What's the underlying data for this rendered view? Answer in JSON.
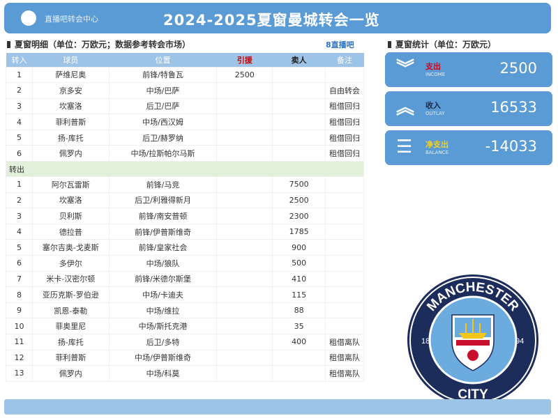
{
  "header": {
    "brand": "直播吧转会中心",
    "title": "2024-2025夏窗曼城转会一览"
  },
  "detail": {
    "title": "夏窗明细（单位：万欧元；数据参考转会市场）",
    "badge": "8直播吧"
  },
  "table": {
    "headers": [
      "转入",
      "球员",
      "位置",
      "引援",
      "卖人",
      "备注"
    ],
    "incoming": [
      [
        "1",
        "萨维尼奥",
        "前锋/特鲁瓦",
        "2500",
        "",
        ""
      ],
      [
        "2",
        "京多安",
        "中场/巴萨",
        "",
        "",
        "自由转会"
      ],
      [
        "3",
        "坎塞洛",
        "后卫/巴萨",
        "",
        "",
        "租借回归"
      ],
      [
        "4",
        "菲利普斯",
        "中场/西汉姆",
        "",
        "",
        "租借回归"
      ],
      [
        "5",
        "扬-库托",
        "后卫/赫罗纳",
        "",
        "",
        "租借回归"
      ],
      [
        "6",
        "佩罗内",
        "中场/拉斯帕尔马斯",
        "",
        "",
        "租借回归"
      ]
    ],
    "out_label": "转出",
    "outgoing": [
      [
        "1",
        "阿尔瓦雷斯",
        "前锋/马竞",
        "",
        "7500",
        ""
      ],
      [
        "2",
        "坎塞洛",
        "后卫/利雅得新月",
        "",
        "2500",
        ""
      ],
      [
        "3",
        "贝利斯",
        "前锋/南安普顿",
        "",
        "2300",
        ""
      ],
      [
        "4",
        "德拉普",
        "前锋/伊普斯维奇",
        "",
        "1785",
        ""
      ],
      [
        "5",
        "塞尔吉奥-戈麦斯",
        "前锋/皇家社会",
        "",
        "900",
        ""
      ],
      [
        "6",
        "多伊尔",
        "中场/狼队",
        "",
        "500",
        ""
      ],
      [
        "7",
        "米卡-汉密尔顿",
        "前锋/米德尔斯堡",
        "",
        "410",
        ""
      ],
      [
        "8",
        "亚历克斯-罗伯逊",
        "中场/卡迪夫",
        "",
        "115",
        ""
      ],
      [
        "9",
        "凯恩-泰勒",
        "中场/维拉",
        "",
        "88",
        ""
      ],
      [
        "10",
        "菲奥里尼",
        "中场/斯托克港",
        "",
        "35",
        ""
      ],
      [
        "11",
        "扬-库托",
        "后卫/多特",
        "",
        "400",
        "租借离队"
      ],
      [
        "12",
        "菲利普斯",
        "中场/伊普斯维奇",
        "",
        "",
        "租借离队"
      ],
      [
        "13",
        "佩罗内",
        "中场/科莫",
        "",
        "",
        "租借离队"
      ]
    ]
  },
  "stats": {
    "title": "夏窗统计（单位：万欧元）",
    "cards": [
      {
        "icon": "double-chevron-down-icon",
        "label": "支出",
        "sub": "INCOME",
        "value": "2500",
        "label_color": "#d0021b"
      },
      {
        "icon": "double-chevron-up-icon",
        "label": "收入",
        "sub": "OUTLAY",
        "value": "16533",
        "label_color": "#1a2a4a"
      },
      {
        "icon": "coins-icon",
        "label": "净支出",
        "sub": "BALANCE",
        "value": "-14033",
        "label_color": "#f5d020"
      }
    ]
  },
  "crest": {
    "top": "MANCHESTER",
    "bottom": "CITY",
    "left": "18",
    "right": "94"
  }
}
